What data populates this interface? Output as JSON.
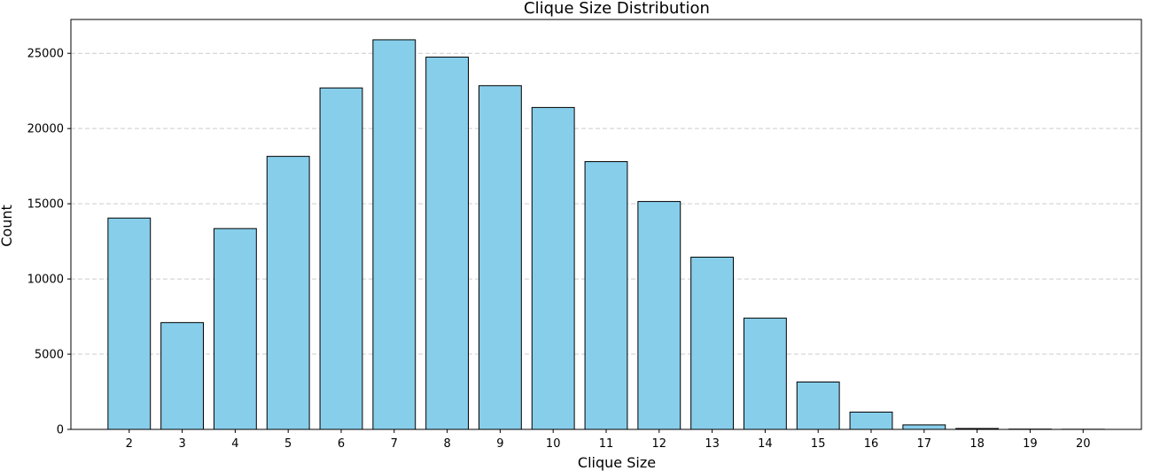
{
  "chart_data": {
    "type": "bar",
    "title": "Clique Size Distribution",
    "xlabel": "Clique Size",
    "ylabel": "Count",
    "categories": [
      "2",
      "3",
      "4",
      "5",
      "6",
      "7",
      "8",
      "9",
      "10",
      "11",
      "12",
      "13",
      "14",
      "15",
      "16",
      "17",
      "18",
      "19",
      "20"
    ],
    "values": [
      14050,
      7100,
      13350,
      18150,
      22700,
      25900,
      24750,
      22850,
      21400,
      17800,
      15150,
      11450,
      7400,
      3150,
      1150,
      300,
      60,
      20,
      10
    ],
    "ylim": [
      0,
      27250
    ],
    "yticks": [
      0,
      5000,
      10000,
      15000,
      20000,
      25000
    ],
    "grid": "y",
    "colors": {
      "bar_fill": "#87CEEB",
      "bar_edge": "#000000",
      "grid": "#cccccc"
    }
  }
}
